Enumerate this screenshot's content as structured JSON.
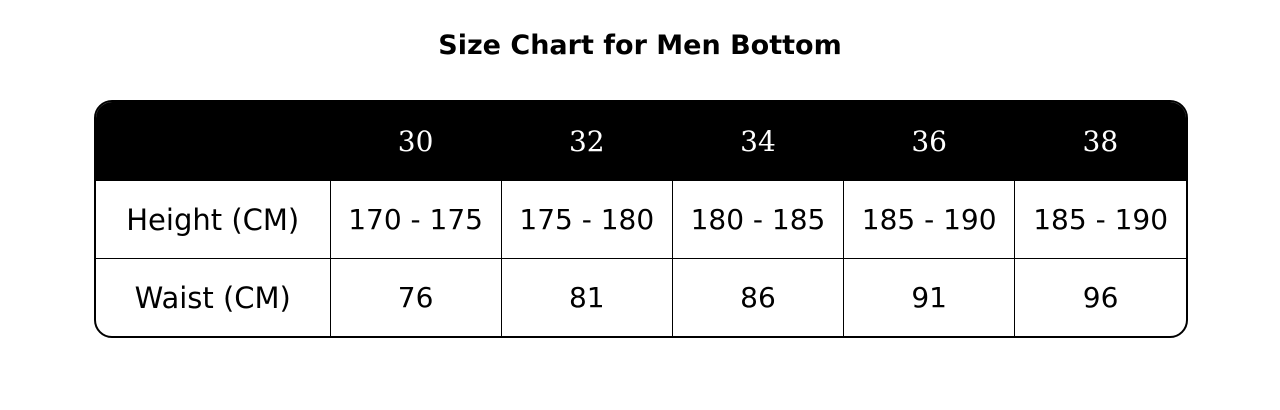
{
  "header": {
    "title": "Size Chart for Men Bottom"
  },
  "table": {
    "columns": [
      "30",
      "32",
      "34",
      "36",
      "38"
    ],
    "rows": [
      [
        "Height (CM)",
        "170 - 175",
        "175 - 180",
        "180 - 185",
        "185 - 190",
        "185 - 190"
      ],
      [
        "Waist (CM)",
        "76",
        "81",
        "86",
        "91",
        "96"
      ]
    ]
  }
}
